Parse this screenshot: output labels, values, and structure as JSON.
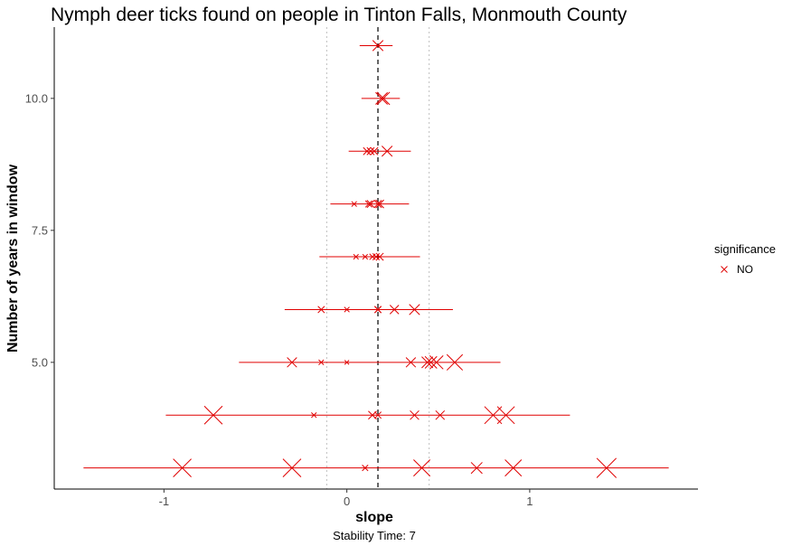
{
  "chart_data": {
    "type": "scatter",
    "title": "Nymph deer ticks found on people in Tinton Falls, Monmouth County",
    "xlabel": "slope",
    "ylabel": "Number of years in window",
    "caption": "Stability Time: 7",
    "xlim": [
      -1.6,
      1.92
    ],
    "ylim": [
      2.6,
      11.35
    ],
    "x_ticks": [
      -1,
      0,
      1
    ],
    "x_tick_labels": [
      "-1",
      "0",
      "1"
    ],
    "y_ticks": [
      5,
      7.5,
      10
    ],
    "y_tick_labels": [
      "5.0",
      "7.5",
      "10.0"
    ],
    "grid": false,
    "reference_lines": {
      "mean_slope": 0.17,
      "range": [
        -0.11,
        0.45
      ]
    },
    "legend": {
      "title": "significance",
      "entries": [
        "NO"
      ],
      "placement": "right"
    },
    "color": "#e00000",
    "windows": [
      {
        "years": 11,
        "ci": [
          0.07,
          0.25
        ],
        "points": [
          {
            "x": 0.17,
            "size": 0.9
          }
        ]
      },
      {
        "years": 10,
        "ci": [
          0.08,
          0.29
        ],
        "points": [
          {
            "x": 0.19,
            "size": 1.1
          },
          {
            "x": 0.2,
            "size": 1.2
          }
        ]
      },
      {
        "years": 9,
        "ci": [
          0.01,
          0.35
        ],
        "points": [
          {
            "x": 0.11,
            "size": 0.5
          },
          {
            "x": 0.13,
            "size": 0.5
          },
          {
            "x": 0.15,
            "size": 0.5
          },
          {
            "x": 0.22,
            "size": 0.9
          }
        ]
      },
      {
        "years": 8,
        "ci": [
          -0.09,
          0.34
        ],
        "points": [
          {
            "x": 0.04,
            "size": 0.2
          },
          {
            "x": 0.12,
            "size": 0.4
          },
          {
            "x": 0.13,
            "size": 0.5
          },
          {
            "x": 0.17,
            "size": 0.5
          },
          {
            "x": 0.18,
            "size": 0.6
          }
        ]
      },
      {
        "years": 7,
        "ci": [
          -0.15,
          0.4
        ],
        "points": [
          {
            "x": 0.05,
            "size": 0.2
          },
          {
            "x": 0.1,
            "size": 0.2
          },
          {
            "x": 0.14,
            "size": 0.3
          },
          {
            "x": 0.16,
            "size": 0.4
          },
          {
            "x": 0.18,
            "size": 0.5
          }
        ]
      },
      {
        "years": 6,
        "ci": [
          -0.34,
          0.58
        ],
        "points": [
          {
            "x": -0.14,
            "size": 0.4
          },
          {
            "x": 0.0,
            "size": 0.2
          },
          {
            "x": 0.17,
            "size": 0.4
          },
          {
            "x": 0.17,
            "size": 0.4
          },
          {
            "x": 0.26,
            "size": 0.7
          },
          {
            "x": 0.37,
            "size": 0.9
          }
        ]
      },
      {
        "years": 5,
        "ci": [
          -0.59,
          0.84
        ],
        "points": [
          {
            "x": -0.3,
            "size": 0.8
          },
          {
            "x": -0.14,
            "size": 0.2
          },
          {
            "x": 0.0,
            "size": 0.1
          },
          {
            "x": 0.35,
            "size": 0.8
          },
          {
            "x": 0.44,
            "size": 1.0
          },
          {
            "x": 0.46,
            "size": 1.1
          },
          {
            "x": 0.49,
            "size": 1.3
          },
          {
            "x": 0.59,
            "size": 1.6
          }
        ]
      },
      {
        "years": 4,
        "ci": [
          -0.99,
          1.22
        ],
        "points": [
          {
            "x": -0.73,
            "size": 1.9
          },
          {
            "x": -0.18,
            "size": 0.2
          },
          {
            "x": 0.14,
            "size": 0.6
          },
          {
            "x": 0.17,
            "size": 0.4
          },
          {
            "x": 0.37,
            "size": 0.7
          },
          {
            "x": 0.51,
            "size": 0.7
          },
          {
            "x": 0.8,
            "size": 1.8
          },
          {
            "x": 0.87,
            "size": 1.8
          }
        ]
      },
      {
        "years": 3,
        "ci": [
          -1.44,
          1.76
        ],
        "points": [
          {
            "x": -0.9,
            "size": 1.9
          },
          {
            "x": -0.3,
            "size": 1.9
          },
          {
            "x": 0.1,
            "size": 0.3
          },
          {
            "x": 0.41,
            "size": 1.7
          },
          {
            "x": 0.71,
            "size": 1.0
          },
          {
            "x": 0.91,
            "size": 1.7
          },
          {
            "x": 1.42,
            "size": 2.1
          }
        ]
      }
    ]
  }
}
